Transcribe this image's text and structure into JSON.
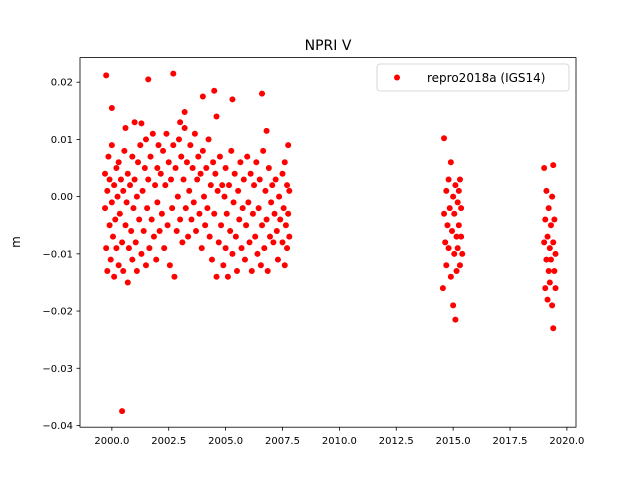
{
  "chart_data": {
    "type": "scatter",
    "title": "NPRI V",
    "xlabel": "",
    "ylabel": "m",
    "xlim": [
      1998.6,
      2020.4
    ],
    "ylim": [
      -0.0403,
      0.0243
    ],
    "xticks": [
      2000.0,
      2002.5,
      2005.0,
      2007.5,
      2010.0,
      2012.5,
      2015.0,
      2017.5,
      2020.0
    ],
    "xtick_labels": [
      "2000.0",
      "2002.5",
      "2005.0",
      "2007.5",
      "2010.0",
      "2012.5",
      "2015.0",
      "2017.5",
      "2020.0"
    ],
    "yticks": [
      0.02,
      0.01,
      0.0,
      -0.01,
      -0.02,
      -0.03,
      -0.04
    ],
    "ytick_labels": [
      "0.02",
      "0.01",
      "0.00",
      "−0.01",
      "−0.02",
      "−0.03",
      "−0.04"
    ],
    "grid": false,
    "legend_position": "top-right",
    "series": [
      {
        "name": "repro2018a (IGS14)",
        "color": "#ff0000",
        "marker": "circle",
        "points": [
          [
            1999.75,
            0.0212
          ],
          [
            2002.7,
            0.0215
          ],
          [
            2001.6,
            0.0205
          ],
          [
            2000.45,
            -0.0375
          ],
          [
            2006.6,
            0.018
          ],
          [
            2004.5,
            0.0185
          ],
          [
            2004.0,
            0.0175
          ],
          [
            2005.3,
            0.017
          ],
          [
            2000.0,
            0.0155
          ],
          [
            2001.0,
            0.013
          ],
          [
            2003.2,
            0.0148
          ],
          [
            2001.3,
            0.0128
          ],
          [
            2004.6,
            0.014
          ],
          [
            2006.8,
            0.0115
          ],
          [
            2003.0,
            0.013
          ],
          [
            2000.6,
            0.012
          ],
          [
            1999.7,
            -0.002
          ],
          [
            1999.7,
            0.004
          ],
          [
            1999.75,
            -0.009
          ],
          [
            1999.8,
            0.001
          ],
          [
            1999.8,
            -0.013
          ],
          [
            1999.85,
            0.007
          ],
          [
            1999.9,
            -0.005
          ],
          [
            1999.9,
            0.003
          ],
          [
            1999.95,
            -0.011
          ],
          [
            2000.0,
            -0.001
          ],
          [
            2000.0,
            0.009
          ],
          [
            2000.05,
            -0.007
          ],
          [
            2000.1,
            0.002
          ],
          [
            2000.1,
            -0.014
          ],
          [
            2000.15,
            -0.004
          ],
          [
            2000.2,
            0.005
          ],
          [
            2000.2,
            -0.009
          ],
          [
            2000.25,
            0.0
          ],
          [
            2000.3,
            -0.012
          ],
          [
            2000.3,
            0.006
          ],
          [
            2000.35,
            -0.003
          ],
          [
            2000.4,
            0.003
          ],
          [
            2000.45,
            -0.008
          ],
          [
            2000.5,
            0.001
          ],
          [
            2000.5,
            -0.013
          ],
          [
            2000.55,
            0.008
          ],
          [
            2000.6,
            -0.005
          ],
          [
            2000.65,
            -0.001
          ],
          [
            2000.7,
            -0.015
          ],
          [
            2000.7,
            0.004
          ],
          [
            2000.75,
            -0.009
          ],
          [
            2000.8,
            0.002
          ],
          [
            2000.85,
            -0.006
          ],
          [
            2000.9,
            0.007
          ],
          [
            2000.9,
            -0.011
          ],
          [
            2000.95,
            -0.002
          ],
          [
            2001.0,
            0.003
          ],
          [
            2001.05,
            -0.008
          ],
          [
            2001.1,
            0.0
          ],
          [
            2001.1,
            -0.013
          ],
          [
            2001.15,
            0.006
          ],
          [
            2001.2,
            -0.004
          ],
          [
            2001.25,
            0.009
          ],
          [
            2001.3,
            -0.01
          ],
          [
            2001.35,
            0.001
          ],
          [
            2001.4,
            -0.006
          ],
          [
            2001.45,
            0.005
          ],
          [
            2001.5,
            -0.012
          ],
          [
            2001.5,
            0.01
          ],
          [
            2001.55,
            -0.002
          ],
          [
            2001.6,
            0.003
          ],
          [
            2001.65,
            -0.009
          ],
          [
            2001.7,
            0.007
          ],
          [
            2001.75,
            -0.004
          ],
          [
            2001.8,
            0.011
          ],
          [
            2001.85,
            -0.007
          ],
          [
            2001.9,
            0.002
          ],
          [
            2001.95,
            -0.011
          ],
          [
            2002.0,
            0.005
          ],
          [
            2002.0,
            -0.001
          ],
          [
            2002.05,
            0.009
          ],
          [
            2002.1,
            -0.006
          ],
          [
            2002.15,
            0.004
          ],
          [
            2002.2,
            -0.003
          ],
          [
            2002.25,
            0.008
          ],
          [
            2002.3,
            -0.009
          ],
          [
            2002.35,
            0.002
          ],
          [
            2002.4,
            0.011
          ],
          [
            2002.45,
            -0.005
          ],
          [
            2002.5,
            0.006
          ],
          [
            2002.55,
            -0.012
          ],
          [
            2002.6,
            0.003
          ],
          [
            2002.65,
            -0.002
          ],
          [
            2002.7,
            0.009
          ],
          [
            2002.75,
            -0.014
          ],
          [
            2002.8,
            0.005
          ],
          [
            2002.85,
            -0.006
          ],
          [
            2002.9,
            0.0
          ],
          [
            2002.95,
            0.01
          ],
          [
            2003.0,
            -0.004
          ],
          [
            2003.05,
            0.007
          ],
          [
            2003.1,
            -0.008
          ],
          [
            2003.15,
            0.003
          ],
          [
            2003.2,
            0.012
          ],
          [
            2003.25,
            -0.002
          ],
          [
            2003.3,
            0.006
          ],
          [
            2003.35,
            -0.007
          ],
          [
            2003.4,
            0.001
          ],
          [
            2003.45,
            0.009
          ],
          [
            2003.5,
            -0.004
          ],
          [
            2003.55,
            0.005
          ],
          [
            2003.6,
            -0.001
          ],
          [
            2003.65,
            0.011
          ],
          [
            2003.7,
            -0.006
          ],
          [
            2003.75,
            0.003
          ],
          [
            2003.8,
            0.007
          ],
          [
            2003.85,
            -0.003
          ],
          [
            2003.9,
            0.004
          ],
          [
            2003.95,
            -0.009
          ],
          [
            2004.0,
            0.008
          ],
          [
            2004.05,
            0.0
          ],
          [
            2004.1,
            -0.005
          ],
          [
            2004.15,
            0.005
          ],
          [
            2004.2,
            -0.002
          ],
          [
            2004.25,
            0.01
          ],
          [
            2004.3,
            -0.007
          ],
          [
            2004.35,
            0.002
          ],
          [
            2004.4,
            -0.011
          ],
          [
            2004.45,
            0.006
          ],
          [
            2004.5,
            -0.003
          ],
          [
            2004.55,
            0.004
          ],
          [
            2004.6,
            -0.014
          ],
          [
            2004.65,
            0.001
          ],
          [
            2004.7,
            -0.008
          ],
          [
            2004.75,
            0.007
          ],
          [
            2004.8,
            -0.005
          ],
          [
            2004.85,
            0.002
          ],
          [
            2004.9,
            -0.012
          ],
          [
            2004.95,
            0.0
          ],
          [
            2005.0,
            -0.009
          ],
          [
            2005.0,
            0.005
          ],
          [
            2005.05,
            -0.003
          ],
          [
            2005.1,
            -0.014
          ],
          [
            2005.15,
            0.002
          ],
          [
            2005.2,
            -0.006
          ],
          [
            2005.25,
            0.008
          ],
          [
            2005.3,
            -0.01
          ],
          [
            2005.35,
            -0.001
          ],
          [
            2005.4,
            0.004
          ],
          [
            2005.45,
            -0.007
          ],
          [
            2005.5,
            -0.013
          ],
          [
            2005.55,
            0.001
          ],
          [
            2005.6,
            -0.004
          ],
          [
            2005.65,
            0.006
          ],
          [
            2005.7,
            -0.009
          ],
          [
            2005.75,
            -0.002
          ],
          [
            2005.8,
            0.003
          ],
          [
            2005.85,
            -0.011
          ],
          [
            2005.9,
            -0.005
          ],
          [
            2005.95,
            0.007
          ],
          [
            2006.0,
            -0.001
          ],
          [
            2006.05,
            -0.008
          ],
          [
            2006.1,
            0.004
          ],
          [
            2006.15,
            -0.013
          ],
          [
            2006.2,
            -0.003
          ],
          [
            2006.25,
            0.002
          ],
          [
            2006.3,
            -0.007
          ],
          [
            2006.35,
            0.006
          ],
          [
            2006.4,
            -0.01
          ],
          [
            2006.45,
            -0.002
          ],
          [
            2006.5,
            0.003
          ],
          [
            2006.55,
            -0.012
          ],
          [
            2006.6,
            -0.005
          ],
          [
            2006.65,
            0.008
          ],
          [
            2006.7,
            -0.009
          ],
          [
            2006.75,
            0.001
          ],
          [
            2006.8,
            -0.004
          ],
          [
            2006.85,
            -0.013
          ],
          [
            2006.9,
            0.005
          ],
          [
            2006.95,
            -0.007
          ],
          [
            2007.0,
            -0.001
          ],
          [
            2007.05,
            0.002
          ],
          [
            2007.1,
            -0.008
          ],
          [
            2007.15,
            -0.003
          ],
          [
            2007.2,
            0.003
          ],
          [
            2007.25,
            -0.006
          ],
          [
            2007.3,
            -0.011
          ],
          [
            2007.35,
            0.0
          ],
          [
            2007.4,
            -0.004
          ],
          [
            2007.5,
            0.004
          ],
          [
            2007.5,
            -0.008
          ],
          [
            2007.55,
            -0.002
          ],
          [
            2007.6,
            0.006
          ],
          [
            2007.6,
            -0.012
          ],
          [
            2007.65,
            -0.005
          ],
          [
            2007.7,
            0.002
          ],
          [
            2007.7,
            -0.009
          ],
          [
            2007.75,
            0.009
          ],
          [
            2007.75,
            -0.003
          ],
          [
            2007.8,
            -0.007
          ],
          [
            2007.8,
            0.001
          ],
          [
            2014.6,
            0.0102
          ],
          [
            2014.55,
            -0.016
          ],
          [
            2014.6,
            -0.003
          ],
          [
            2014.65,
            -0.008
          ],
          [
            2014.7,
            0.001
          ],
          [
            2014.7,
            -0.012
          ],
          [
            2014.75,
            -0.005
          ],
          [
            2014.8,
            0.003
          ],
          [
            2014.8,
            -0.009
          ],
          [
            2014.85,
            -0.002
          ],
          [
            2014.9,
            0.006
          ],
          [
            2014.9,
            -0.014
          ],
          [
            2014.95,
            -0.006
          ],
          [
            2015.0,
            -0.019
          ],
          [
            2015.0,
            0.0
          ],
          [
            2015.05,
            -0.01
          ],
          [
            2015.05,
            -0.003
          ],
          [
            2015.1,
            -0.0215
          ],
          [
            2015.1,
            0.002
          ],
          [
            2015.15,
            -0.007
          ],
          [
            2015.15,
            -0.013
          ],
          [
            2015.2,
            -0.001
          ],
          [
            2015.2,
            -0.009
          ],
          [
            2015.25,
            0.001
          ],
          [
            2015.25,
            -0.005
          ],
          [
            2015.3,
            -0.012
          ],
          [
            2015.3,
            0.003
          ],
          [
            2015.35,
            -0.007
          ],
          [
            2015.35,
            -0.002
          ],
          [
            2015.4,
            -0.01
          ],
          [
            2019.0,
            0.005
          ],
          [
            2019.0,
            -0.008
          ],
          [
            2019.05,
            -0.016
          ],
          [
            2019.05,
            -0.004
          ],
          [
            2019.1,
            -0.011
          ],
          [
            2019.1,
            0.001
          ],
          [
            2019.15,
            -0.007
          ],
          [
            2019.15,
            -0.018
          ],
          [
            2019.2,
            -0.013
          ],
          [
            2019.2,
            -0.002
          ],
          [
            2019.25,
            -0.009
          ],
          [
            2019.25,
            -0.015
          ],
          [
            2019.3,
            -0.005
          ],
          [
            2019.3,
            -0.011
          ],
          [
            2019.35,
            -0.019
          ],
          [
            2019.35,
            0.0
          ],
          [
            2019.4,
            0.0055
          ],
          [
            2019.4,
            -0.023
          ],
          [
            2019.4,
            -0.008
          ],
          [
            2019.45,
            -0.013
          ],
          [
            2019.45,
            -0.004
          ],
          [
            2019.5,
            -0.01
          ],
          [
            2019.5,
            -0.016
          ]
        ]
      }
    ]
  }
}
